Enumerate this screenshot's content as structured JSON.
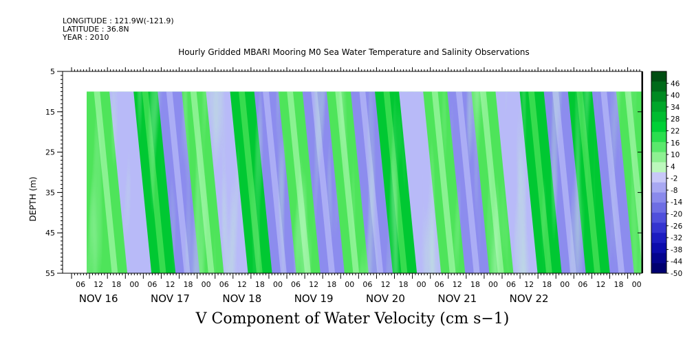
{
  "header": {
    "longitude": "LONGITUDE : 121.9W(-121.9)",
    "latitude": "LATITUDE : 36.8N",
    "year": "YEAR : 2010"
  },
  "colors": {
    "positive_strong": "#00c832",
    "positive_mid": "#4ee45a",
    "positive_light": "#a4f8a8",
    "negative_light": "#b8baf8",
    "negative_mid": "#8c8cee",
    "negative_strong": "#6a6ad8",
    "frame": "#000000"
  },
  "chart_data": {
    "type": "heatmap",
    "title": "Hourly Gridded MBARI Mooring M0 Sea Water Temperature and Salinity Observations",
    "variable_label": "V Component of Water Velocity (cm s−1)",
    "ylabel": "DEPTH (m)",
    "y_ticks": [
      "5",
      "15",
      "25",
      "35",
      "45",
      "55"
    ],
    "ylim": [
      5,
      55
    ],
    "y_inverted": true,
    "data_depth_range": [
      10,
      55
    ],
    "x_hour_ticks": [
      "06",
      "12",
      "18",
      "00",
      "06",
      "12",
      "18",
      "00",
      "06",
      "12",
      "18",
      "00",
      "06",
      "12",
      "18",
      "00",
      "06",
      "12",
      "18",
      "00",
      "06",
      "12",
      "18",
      "00",
      "06",
      "12",
      "18",
      "00",
      "06",
      "12",
      "18",
      "00"
    ],
    "x_day_labels": [
      "NOV 16",
      "NOV 17",
      "NOV 18",
      "NOV 19",
      "NOV 20",
      "NOV 21",
      "NOV 22"
    ],
    "colorbar_labels": [
      "46",
      "40",
      "34",
      "28",
      "22",
      "16",
      "10",
      "4",
      "-2",
      "-8",
      "-14",
      "-20",
      "-26",
      "-32",
      "-38",
      "-44",
      "-50"
    ],
    "colorbar_range": [
      -50,
      52
    ],
    "colorbar_colors": [
      "#004d12",
      "#006a1a",
      "#008a22",
      "#00a62a",
      "#00bc30",
      "#00d036",
      "#2ade4e",
      "#5ae86c",
      "#8ef092",
      "#bcf8bc",
      "#c8c8f8",
      "#a8a8f2",
      "#8a8aec",
      "#6e6ee4",
      "#5050dc",
      "#3434d0",
      "#1c1cc0",
      "#0c0cac",
      "#04048e",
      "#000070"
    ],
    "bands": [
      {
        "sign": "+",
        "strength": 2
      },
      {
        "sign": "-",
        "strength": 1
      },
      {
        "sign": "+",
        "strength": 3
      },
      {
        "sign": "-",
        "strength": 2
      },
      {
        "sign": "+",
        "strength": 2
      },
      {
        "sign": "-",
        "strength": 1
      },
      {
        "sign": "+",
        "strength": 3
      },
      {
        "sign": "-",
        "strength": 2
      },
      {
        "sign": "+",
        "strength": 2
      },
      {
        "sign": "-",
        "strength": 2
      },
      {
        "sign": "+",
        "strength": 2
      },
      {
        "sign": "-",
        "strength": 2
      },
      {
        "sign": "+",
        "strength": 3
      },
      {
        "sign": "-",
        "strength": 1
      },
      {
        "sign": "+",
        "strength": 2
      },
      {
        "sign": "-",
        "strength": 2
      },
      {
        "sign": "+",
        "strength": 2
      },
      {
        "sign": "-",
        "strength": 1
      },
      {
        "sign": "+",
        "strength": 3
      },
      {
        "sign": "-",
        "strength": 2
      },
      {
        "sign": "+",
        "strength": 3
      },
      {
        "sign": "-",
        "strength": 2
      },
      {
        "sign": "+",
        "strength": 2
      }
    ]
  }
}
